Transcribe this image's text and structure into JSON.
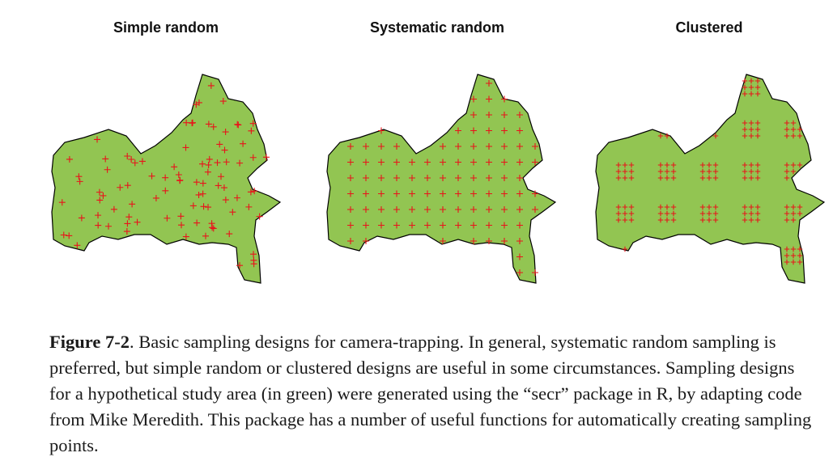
{
  "panels": [
    {
      "title": "Simple random",
      "design": "simple-random"
    },
    {
      "title": "Systematic random",
      "design": "systematic-random"
    },
    {
      "title": "Clustered",
      "design": "clustered"
    }
  ],
  "caption": {
    "label": "Figure 7-2",
    "text": ". Basic sampling designs for camera-trapping. In general, systematic random sampling is preferred, but simple random or clustered designs are useful in some circumstances. Sampling designs for a hypothetical study area (in green) were generated using the “secr” package in R, by adapting code from Mike Meredith. This package has a number of useful functions for automatically creating sampling points."
  },
  "colors": {
    "area_fill": "#92c552",
    "area_stroke": "#000000",
    "point_color": "#e8141b"
  }
}
